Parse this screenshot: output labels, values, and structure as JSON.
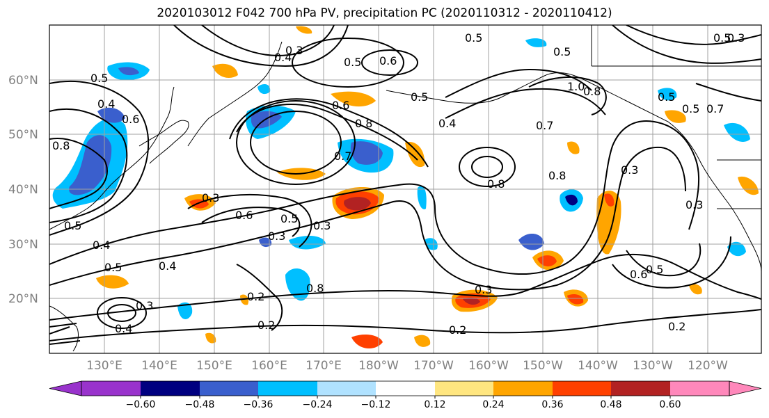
{
  "title": "2020103012 F042 700 hPa PV, precipitation PC (2020110312 - 2020110412)",
  "lat_labels": [
    "60°N",
    "50°N",
    "40°N",
    "30°N",
    "20°N"
  ],
  "lon_labels": [
    "130°E",
    "140°E",
    "150°E",
    "160°E",
    "170°E",
    "180°W",
    "170°W",
    "160°W",
    "150°W",
    "140°W",
    "130°W",
    "120°W"
  ],
  "colorbar": {
    "ticks": [
      "−0.60",
      "−0.48",
      "−0.36",
      "−0.24",
      "−0.12",
      "0.12",
      "0.24",
      "0.36",
      "0.48",
      "0.60"
    ],
    "colors": [
      "#9933cc",
      "#000080",
      "#3a5fcd",
      "#00bfff",
      "#b0e2ff",
      "#ffffff",
      "#ffe680",
      "#ffa500",
      "#ff4000",
      "#b22222",
      "#ff88bb"
    ]
  },
  "contour_labels": [
    "0.4",
    "0.3",
    "0.5",
    "0.6",
    "0.5",
    "0.5",
    "0.5",
    "0.4",
    "0.7",
    "0.8",
    "1.0",
    "0.7",
    "0.5",
    "0.6",
    "0.8",
    "0.3",
    "0.4",
    "0.5",
    "0.6",
    "0.8",
    "0.8",
    "0.8",
    "0.3",
    "0.6",
    "0.5",
    "0.3",
    "0.5",
    "0.3",
    "0.4",
    "0.5",
    "0.4",
    "0.2",
    "0.3",
    "0.4",
    "0.2",
    "0.2",
    "0.3",
    "0.2",
    "0.5",
    "0.6",
    "0.5",
    "0.3",
    "0.7",
    "0.5",
    "0.3",
    "0.8"
  ]
}
